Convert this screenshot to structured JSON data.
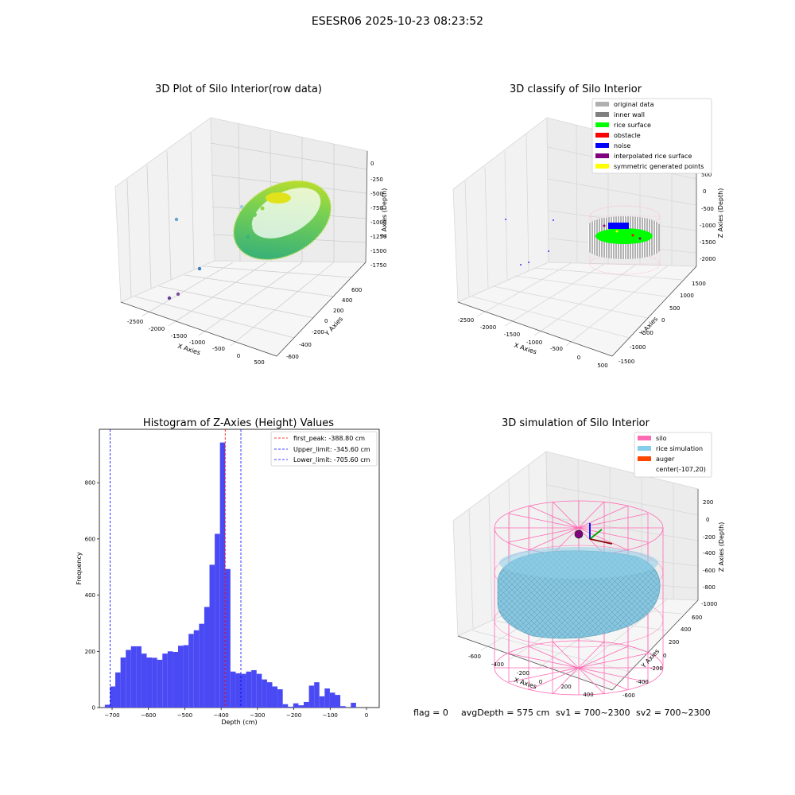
{
  "figure_title": "ESESR06 2025-10-23 08:23:52",
  "footer": {
    "flag": "flag = 0",
    "avg_depth": "avgDepth = 575 cm",
    "sv1": "sv1 = 700~2300",
    "sv2": "sv2 = 700~2300"
  },
  "colors": {
    "hist_bar": "#4a4af5",
    "peak_line": "#ff0000",
    "limit_line": "#0000ff",
    "silo": "#ff69b4",
    "rice_sim": "#87cefa",
    "auger": "#ff4500",
    "raw_fill_start": "#21a685",
    "raw_fill_end": "#dde318",
    "original": "#b0b0b0",
    "inner_wall": "#808080",
    "rice_surface": "#00ff00",
    "obstacle": "#ff0000",
    "noise": "#0000ff",
    "interpolated": "#800080",
    "symmetric": "#ffff00"
  },
  "chart_data": [
    {
      "type": "scatter",
      "title": "3D Plot of Silo Interior(row data)",
      "xlabel": "X Axies",
      "ylabel": "Y Axies",
      "zlabel": "Z Axies (Depth)",
      "xticks": [
        "-2500",
        "-2000",
        "-1500",
        "-1000",
        "-500",
        "0",
        "500"
      ],
      "yticks": [
        "-600",
        "-400",
        "-200",
        "0",
        "200",
        "400",
        "600"
      ],
      "zticks": [
        "0",
        "-250",
        "-500",
        "-750",
        "-1000",
        "-1250",
        "-1500",
        "-1750"
      ],
      "outlier_points": [
        {
          "x": -2500,
          "y": -400,
          "z": -600
        },
        {
          "x": -1900,
          "y": -500,
          "z": -1500
        },
        {
          "x": -2400,
          "y": 100,
          "z": -1750
        },
        {
          "x": -2150,
          "y": 0,
          "z": -1700
        },
        {
          "x": -900,
          "y": 350,
          "z": -500
        }
      ]
    },
    {
      "type": "scatter",
      "title": "3D classify of Silo Interior",
      "xlabel": "X Axies",
      "ylabel": "Y Axies",
      "zlabel": "Z Axies (Depth)",
      "xticks": [
        "-2500",
        "-2000",
        "-1500",
        "-1000",
        "-500",
        "0",
        "500"
      ],
      "yticks": [
        "-1500",
        "-1000",
        "-500",
        "0",
        "500",
        "1000",
        "1500"
      ],
      "zticks": [
        "500",
        "0",
        "-500",
        "-1000",
        "-1500",
        "-2000"
      ],
      "legend": [
        "original data",
        "inner wall",
        "rice surface",
        "obstacle",
        "noise",
        "interpolated rice surface",
        "symmetric generated points"
      ],
      "legend_position": "top-right"
    },
    {
      "type": "bar",
      "title": "Histogram of Z-Axies (Height) Values",
      "xlabel": "Depth (cm)",
      "ylabel": "Frequency",
      "xticks": [
        -700,
        -600,
        -500,
        -400,
        -300,
        -200,
        -100,
        0
      ],
      "yticks": [
        0,
        200,
        400,
        600,
        800
      ],
      "xlim": [
        -735,
        35
      ],
      "ylim": [
        0,
        990
      ],
      "bin_start": -720,
      "bin_width": 14.4,
      "values": [
        10,
        75,
        125,
        178,
        205,
        218,
        218,
        192,
        178,
        177,
        170,
        192,
        200,
        198,
        220,
        222,
        262,
        275,
        298,
        358,
        508,
        618,
        943,
        493,
        128,
        122,
        120,
        128,
        133,
        120,
        100,
        90,
        75,
        65,
        12,
        3,
        15,
        8,
        20,
        78,
        90,
        40,
        68,
        53,
        45,
        5,
        0,
        17
      ],
      "vlines": [
        {
          "label": "first_peak: -388.80 cm",
          "x": -388.8,
          "color": "#ff0000"
        },
        {
          "label": "Upper_limit: -345.60 cm",
          "x": -345.6,
          "color": "#0000ff"
        },
        {
          "label": "Lower_limit: -705.60 cm",
          "x": -705.6,
          "color": "#0000ff"
        }
      ],
      "legend_position": "top-right"
    },
    {
      "type": "area",
      "title": "3D simulation of Silo Interior",
      "xlabel": "X Axies",
      "ylabel": "Y Axies",
      "zlabel": "Z Axies (Depth)",
      "xticks": [
        "-600",
        "-400",
        "-200",
        "0",
        "200",
        "400"
      ],
      "yticks": [
        "-600",
        "-400",
        "-200",
        "0",
        "200",
        "400",
        "600"
      ],
      "zticks": [
        "200",
        "0",
        "-200",
        "-400",
        "-600",
        "-800",
        "-1000"
      ],
      "legend": [
        "silo",
        "rice simulation",
        "auger",
        "center(-107,20)"
      ],
      "legend_position": "top-right"
    }
  ]
}
